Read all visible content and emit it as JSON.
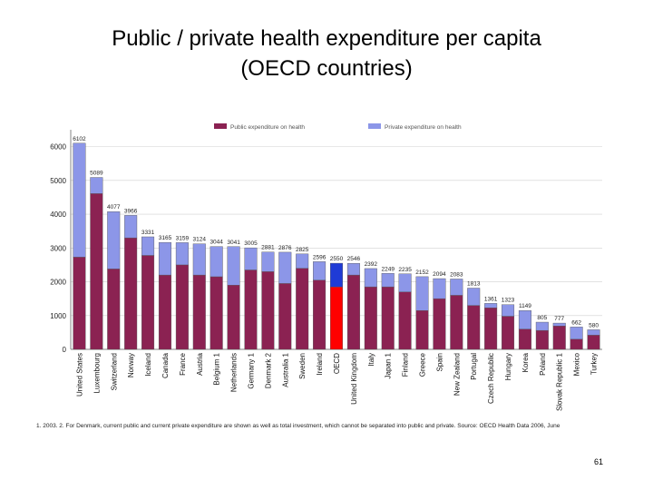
{
  "slide": {
    "title_line1": "Public / private health expenditure per capita",
    "title_line2": "(OECD countries)",
    "footnote": "1. 2003.   2. For Denmark, current public and current private expenditure are shown as well as total investment, which cannot be separated into public and private. Source: OECD Health Data 2006, June",
    "page_number": "61"
  },
  "chart_data": {
    "type": "bar",
    "stacked": true,
    "categories": [
      "United States",
      "Luxembourg",
      "Switzerland",
      "Norway",
      "Iceland",
      "Canada",
      "France",
      "Austria",
      "Belgium 1",
      "Netherlands",
      "Germany 1",
      "Denmark 2",
      "Australia 1",
      "Sweden",
      "Ireland",
      "OECD",
      "United Kingdom",
      "Italy",
      "Japan 1",
      "Finland",
      "Greece",
      "Spain",
      "New Zealand",
      "Portugal",
      "Czech Republic",
      "Hungary",
      "Korea",
      "Poland",
      "Slovak Republic 1",
      "Mexico",
      "Turkey"
    ],
    "totals": [
      6102,
      5089,
      4077,
      3966,
      3331,
      3165,
      3159,
      3124,
      3044,
      3041,
      3005,
      2881,
      2876,
      2825,
      2596,
      2550,
      2546,
      2392,
      2249,
      2235,
      2152,
      2094,
      2083,
      1813,
      1361,
      1323,
      1149,
      805,
      777,
      662,
      580
    ],
    "series": [
      {
        "name": "Public expenditure on health",
        "color": "#8b2252",
        "values": [
          2730,
          4610,
          2380,
          3300,
          2780,
          2200,
          2500,
          2200,
          2150,
          1900,
          2350,
          2300,
          1950,
          2400,
          2050,
          1850,
          2200,
          1850,
          1850,
          1700,
          1150,
          1500,
          1600,
          1300,
          1230,
          980,
          600,
          560,
          690,
          300,
          420
        ]
      },
      {
        "name": "Private expenditure on health",
        "color": "#8c96e8",
        "values": [
          3372,
          479,
          1697,
          666,
          551,
          965,
          659,
          924,
          894,
          1141,
          655,
          581,
          926,
          425,
          546,
          700,
          346,
          542,
          399,
          535,
          1002,
          594,
          483,
          513,
          131,
          343,
          549,
          245,
          87,
          362,
          160
        ]
      }
    ],
    "highlight_category": "OECD",
    "highlight_colors": {
      "public": "#ff0000",
      "private": "#1f3bd6"
    },
    "ylim": [
      0,
      6500
    ],
    "yticks": [
      "0",
      "1000",
      "2000",
      "3000",
      "4000",
      "5000",
      "6000"
    ],
    "xlabel": "",
    "ylabel": "",
    "grid": true,
    "legend_position": "top"
  }
}
